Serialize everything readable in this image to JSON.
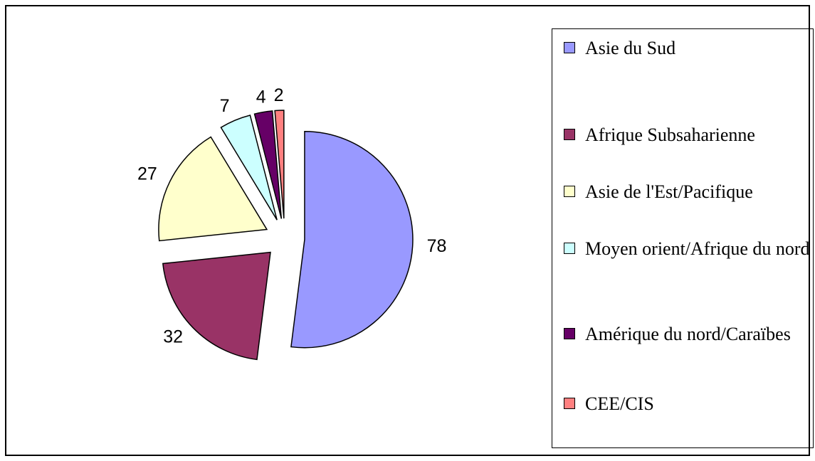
{
  "chart_data": {
    "type": "pie",
    "categories": [
      "Asie du Sud",
      "Afrique Subsaharienne",
      "Asie de l'Est/Pacifique",
      "Moyen orient/Afrique du nord",
      "Amérique du nord/Caraïbes",
      "CEE/CIS"
    ],
    "values": [
      78,
      32,
      27,
      7,
      4,
      2
    ],
    "colors": [
      "#9999ff",
      "#993366",
      "#ffffcc",
      "#ccffff",
      "#660066",
      "#ff8080"
    ],
    "exploded": true,
    "legend": "right"
  }
}
